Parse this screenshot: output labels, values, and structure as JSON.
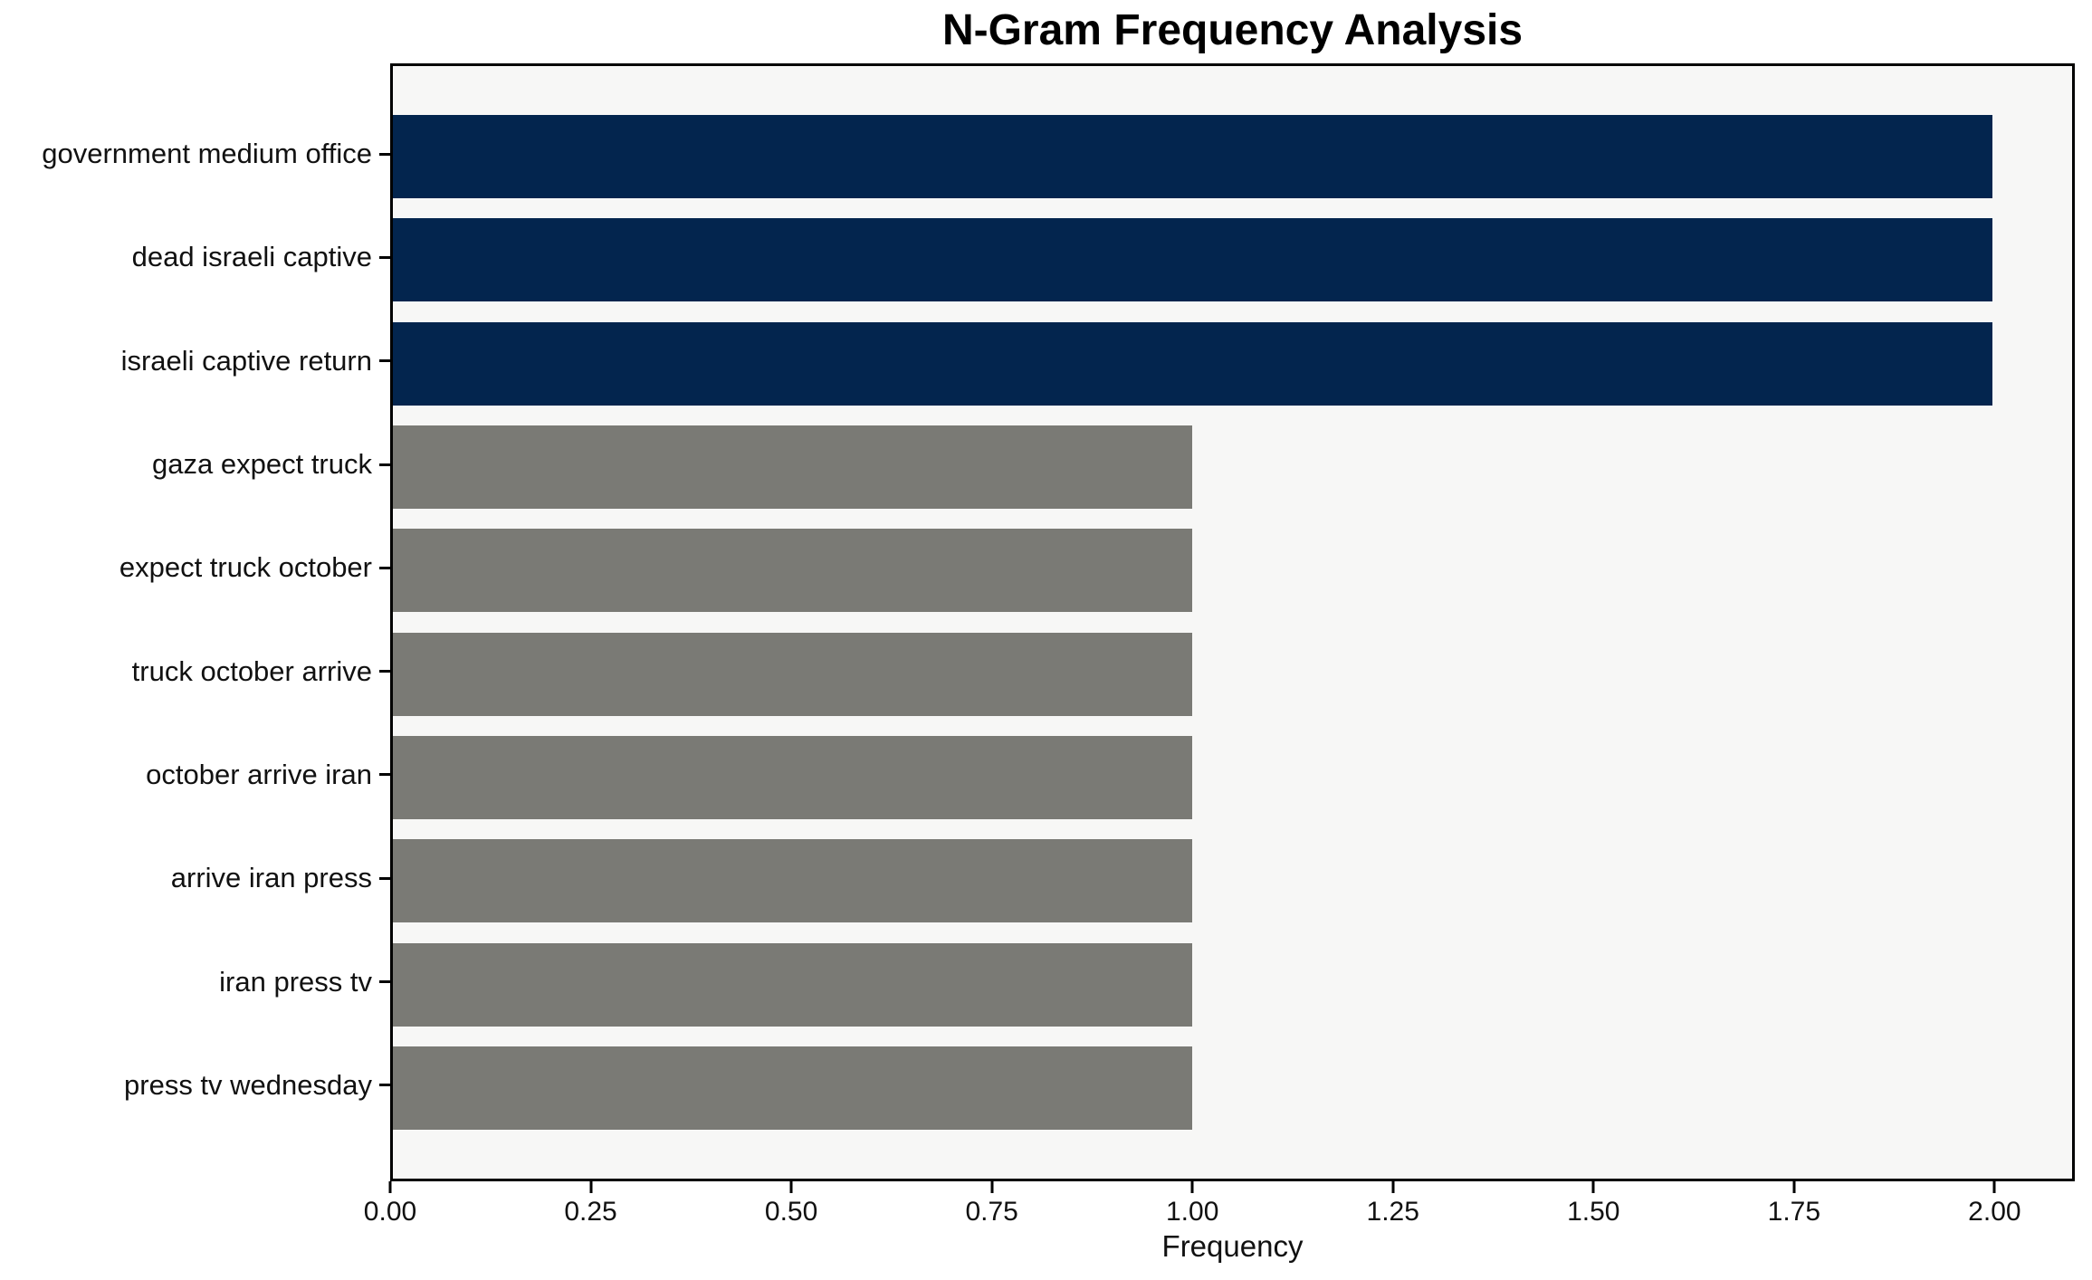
{
  "chart_data": {
    "type": "bar",
    "orientation": "horizontal",
    "title": "N-Gram Frequency Analysis",
    "xlabel": "Frequency",
    "ylabel": "",
    "categories": [
      "government medium office",
      "dead israeli captive",
      "israeli captive return",
      "gaza expect truck",
      "expect truck october",
      "truck october arrive",
      "october arrive iran",
      "arrive iran press",
      "iran press tv",
      "press tv wednesday"
    ],
    "values": [
      2,
      2,
      2,
      1,
      1,
      1,
      1,
      1,
      1,
      1
    ],
    "bar_colors": [
      "#03254e",
      "#03254e",
      "#03254e",
      "#7a7a75",
      "#7a7a75",
      "#7a7a75",
      "#7a7a75",
      "#7a7a75",
      "#7a7a75",
      "#7a7a75"
    ],
    "xlim": [
      0,
      2.1
    ],
    "xtick_values": [
      0.0,
      0.25,
      0.5,
      0.75,
      1.0,
      1.25,
      1.5,
      1.75,
      2.0
    ],
    "xtick_labels": [
      "0.00",
      "0.25",
      "0.50",
      "0.75",
      "1.00",
      "1.25",
      "1.50",
      "1.75",
      "2.00"
    ],
    "plot_background": "#f7f7f6",
    "figure_background": "#ffffff",
    "spine_color": "#000000",
    "grid": false,
    "legend": null
  }
}
